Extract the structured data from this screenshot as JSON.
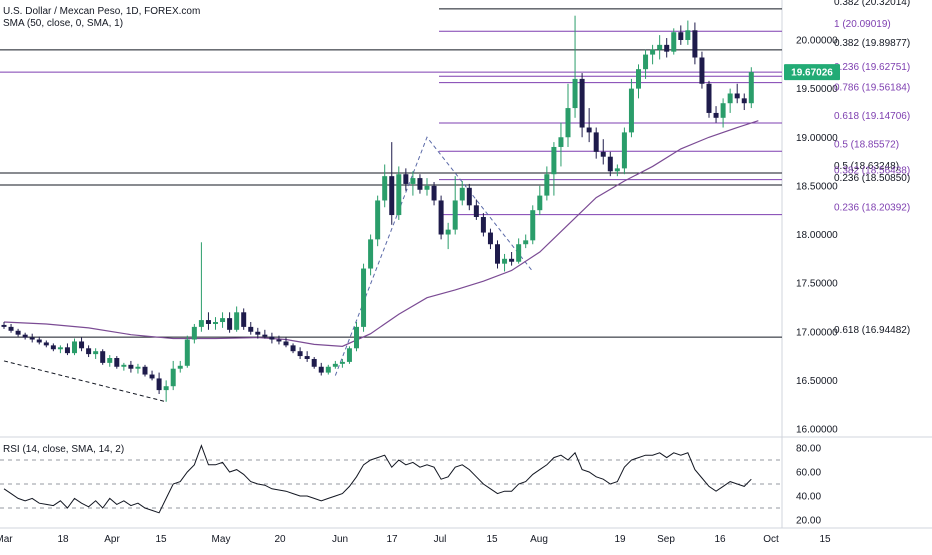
{
  "window": {
    "title": "U.S. Dollar / Mexcan Peso, 1D, FOREX.com",
    "sma_legend": "SMA (50, close, 0, SMA, 1)",
    "rsi_legend": "RSI (14, close, SMA, 14, 2)"
  },
  "colors": {
    "up": "#2a9d6a",
    "down": "#1e1b4b",
    "fib": "#7e3fb0",
    "sma": "#7b4b94",
    "level": "#131722",
    "price_tag": "#22ab75",
    "grid": "#eeeeee"
  },
  "chart_data": [
    {
      "type": "candlestick",
      "title": "U.S. Dollar / Mexcan Peso, 1D, FOREX.com",
      "ylim": [
        16.0,
        20.35
      ],
      "y_ticks": [
        "20.00000",
        "19.50000",
        "19.00000",
        "18.50000",
        "18.00000",
        "17.50000",
        "17.00000",
        "16.50000",
        "16.00000"
      ],
      "x_ticks": [
        "Mar",
        "18",
        "Apr",
        "15",
        "May",
        "20",
        "Jun",
        "17",
        "Jul",
        "15",
        "Aug",
        "19",
        "Sep",
        "16",
        "Oct",
        "15"
      ],
      "last_price": "19.67026",
      "candles": [
        [
          17.07,
          17.1,
          17.03,
          17.05
        ],
        [
          17.05,
          17.08,
          16.99,
          17.01
        ],
        [
          17.01,
          17.03,
          16.95,
          16.97
        ],
        [
          16.97,
          16.99,
          16.92,
          16.94
        ],
        [
          16.94,
          16.98,
          16.89,
          16.92
        ],
        [
          16.92,
          16.95,
          16.87,
          16.89
        ],
        [
          16.89,
          16.91,
          16.84,
          16.86
        ],
        [
          16.86,
          16.88,
          16.8,
          16.82
        ],
        [
          16.82,
          16.86,
          16.78,
          16.84
        ],
        [
          16.84,
          16.88,
          16.76,
          16.78
        ],
        [
          16.78,
          16.93,
          16.76,
          16.9
        ],
        [
          16.9,
          16.94,
          16.8,
          16.83
        ],
        [
          16.83,
          16.86,
          16.74,
          16.77
        ],
        [
          16.77,
          16.83,
          16.72,
          16.8
        ],
        [
          16.8,
          16.82,
          16.66,
          16.68
        ],
        [
          16.68,
          16.76,
          16.64,
          16.73
        ],
        [
          16.73,
          16.75,
          16.62,
          16.64
        ],
        [
          16.64,
          16.68,
          16.6,
          16.66
        ],
        [
          16.66,
          16.7,
          16.58,
          16.62
        ],
        [
          16.62,
          16.67,
          16.57,
          16.64
        ],
        [
          16.64,
          16.66,
          16.54,
          16.56
        ],
        [
          16.56,
          16.6,
          16.5,
          16.52
        ],
        [
          16.52,
          16.58,
          16.36,
          16.4
        ],
        [
          16.4,
          16.5,
          16.28,
          16.44
        ],
        [
          16.44,
          16.7,
          16.4,
          16.62
        ],
        [
          16.62,
          16.7,
          16.58,
          16.65
        ],
        [
          16.65,
          16.96,
          16.63,
          16.92
        ],
        [
          16.92,
          17.08,
          16.88,
          17.05
        ],
        [
          17.05,
          17.92,
          17.0,
          17.12
        ],
        [
          17.12,
          17.2,
          17.02,
          17.08
        ],
        [
          17.08,
          17.15,
          17.02,
          17.1
        ],
        [
          17.1,
          17.2,
          17.04,
          17.14
        ],
        [
          17.14,
          17.2,
          16.99,
          17.02
        ],
        [
          17.02,
          17.26,
          17.0,
          17.2
        ],
        [
          17.2,
          17.24,
          17.02,
          17.05
        ],
        [
          17.05,
          17.1,
          16.97,
          17.0
        ],
        [
          17.0,
          17.04,
          16.93,
          16.97
        ],
        [
          16.97,
          17.02,
          16.93,
          16.95
        ],
        [
          16.95,
          16.99,
          16.88,
          16.92
        ],
        [
          16.92,
          16.96,
          16.87,
          16.9
        ],
        [
          16.9,
          16.94,
          16.84,
          16.86
        ],
        [
          16.86,
          16.88,
          16.78,
          16.8
        ],
        [
          16.8,
          16.84,
          16.72,
          16.75
        ],
        [
          16.75,
          16.8,
          16.69,
          16.72
        ],
        [
          16.72,
          16.74,
          16.62,
          16.64
        ],
        [
          16.64,
          16.68,
          16.55,
          16.58
        ],
        [
          16.58,
          16.66,
          16.56,
          16.64
        ],
        [
          16.64,
          16.7,
          16.62,
          16.67
        ],
        [
          16.67,
          16.72,
          16.63,
          16.69
        ],
        [
          16.69,
          16.85,
          16.67,
          16.83
        ],
        [
          16.83,
          17.1,
          16.8,
          17.05
        ],
        [
          17.05,
          17.7,
          17.0,
          17.65
        ],
        [
          17.65,
          18.0,
          17.58,
          17.95
        ],
        [
          17.95,
          18.4,
          17.88,
          18.35
        ],
        [
          18.35,
          18.72,
          18.28,
          18.6
        ],
        [
          18.6,
          18.95,
          18.1,
          18.2
        ],
        [
          18.2,
          18.7,
          18.15,
          18.62
        ],
        [
          18.62,
          18.68,
          18.45,
          18.52
        ],
        [
          18.52,
          18.65,
          18.4,
          18.58
        ],
        [
          18.58,
          18.62,
          18.42,
          18.46
        ],
        [
          18.46,
          18.58,
          18.4,
          18.5
        ],
        [
          18.5,
          18.54,
          18.3,
          18.35
        ],
        [
          18.35,
          18.4,
          17.95,
          18.0
        ],
        [
          18.0,
          18.12,
          17.85,
          18.05
        ],
        [
          18.05,
          18.6,
          18.0,
          18.35
        ],
        [
          18.35,
          18.55,
          18.3,
          18.48
        ],
        [
          18.48,
          18.52,
          18.25,
          18.3
        ],
        [
          18.3,
          18.36,
          18.15,
          18.18
        ],
        [
          18.18,
          18.22,
          17.98,
          18.02
        ],
        [
          18.02,
          18.06,
          17.85,
          17.9
        ],
        [
          17.9,
          17.94,
          17.65,
          17.7
        ],
        [
          17.7,
          17.8,
          17.62,
          17.75
        ],
        [
          17.75,
          17.82,
          17.68,
          17.72
        ],
        [
          17.72,
          17.96,
          17.7,
          17.9
        ],
        [
          17.9,
          18.0,
          17.86,
          17.94
        ],
        [
          17.94,
          18.3,
          17.9,
          18.25
        ],
        [
          18.25,
          18.5,
          18.2,
          18.4
        ],
        [
          18.4,
          18.7,
          18.35,
          18.62
        ],
        [
          18.62,
          18.95,
          18.4,
          18.9
        ],
        [
          18.9,
          19.15,
          18.7,
          19.0
        ],
        [
          19.0,
          19.55,
          18.9,
          19.3
        ],
        [
          19.3,
          20.25,
          19.2,
          19.6
        ],
        [
          19.6,
          19.66,
          19.0,
          19.1
        ],
        [
          19.1,
          19.3,
          18.95,
          19.05
        ],
        [
          19.05,
          19.1,
          18.78,
          18.85
        ],
        [
          18.85,
          18.98,
          18.72,
          18.8
        ],
        [
          18.8,
          18.85,
          18.6,
          18.65
        ],
        [
          18.65,
          18.72,
          18.6,
          18.68
        ],
        [
          18.68,
          19.1,
          18.62,
          19.05
        ],
        [
          19.05,
          19.6,
          19.0,
          19.5
        ],
        [
          19.5,
          19.75,
          19.4,
          19.7
        ],
        [
          19.7,
          19.9,
          19.6,
          19.85
        ],
        [
          19.85,
          19.95,
          19.75,
          19.9
        ],
        [
          19.9,
          20.05,
          19.8,
          19.95
        ],
        [
          19.95,
          20.02,
          19.82,
          19.88
        ],
        [
          19.88,
          20.12,
          19.85,
          20.08
        ],
        [
          20.08,
          20.15,
          19.95,
          20.0
        ],
        [
          20.0,
          20.2,
          19.95,
          20.1
        ],
        [
          20.1,
          20.18,
          19.75,
          19.82
        ],
        [
          19.82,
          19.88,
          19.5,
          19.55
        ],
        [
          19.55,
          19.58,
          19.2,
          19.25
        ],
        [
          19.25,
          19.32,
          19.15,
          19.2
        ],
        [
          19.2,
          19.4,
          19.1,
          19.35
        ],
        [
          19.35,
          19.5,
          19.25,
          19.45
        ],
        [
          19.45,
          19.55,
          19.35,
          19.4
        ],
        [
          19.4,
          19.45,
          19.28,
          19.35
        ],
        [
          19.35,
          19.72,
          19.3,
          19.67
        ]
      ],
      "sma": [
        [
          0,
          17.1
        ],
        [
          6,
          17.08
        ],
        [
          12,
          17.04
        ],
        [
          18,
          16.97
        ],
        [
          24,
          16.93
        ],
        [
          30,
          16.93
        ],
        [
          36,
          16.94
        ],
        [
          40,
          16.92
        ],
        [
          44,
          16.87
        ],
        [
          48,
          16.85
        ],
        [
          52,
          16.98
        ],
        [
          56,
          17.18
        ],
        [
          60,
          17.35
        ],
        [
          64,
          17.43
        ],
        [
          68,
          17.52
        ],
        [
          72,
          17.63
        ],
        [
          76,
          17.82
        ],
        [
          80,
          18.1
        ],
        [
          84,
          18.38
        ],
        [
          88,
          18.55
        ],
        [
          92,
          18.7
        ],
        [
          96,
          18.88
        ],
        [
          100,
          19.0
        ],
        [
          104,
          19.1
        ],
        [
          107,
          19.17
        ]
      ],
      "horizontal_levels": [
        {
          "value": 20.32014,
          "label": "0.382 (20.32014)",
          "kind": "level",
          "from": 60
        },
        {
          "value": 19.89877,
          "label": "0.382 (19.89877)",
          "kind": "level",
          "from": 0
        },
        {
          "value": 19.67026,
          "label": "",
          "kind": "fib",
          "from": 0
        },
        {
          "value": 16.94482,
          "label": "0.618 (16.94482)",
          "kind": "level",
          "from": 0
        },
        {
          "value": 18.63248,
          "label": "0.5 (18.63248)",
          "kind": "level",
          "from": 0
        },
        {
          "value": 18.5085,
          "label": "0.236 (18.50850)",
          "kind": "level",
          "from": 0
        }
      ],
      "fib_levels": [
        {
          "value": 20.09019,
          "label": "1 (20.09019)"
        },
        {
          "value": 19.62751,
          "label": "0.236 (19.62751)"
        },
        {
          "value": 19.56184,
          "label": "0.786 (19.56184)"
        },
        {
          "value": 19.14706,
          "label": "0.618 (19.14706)"
        },
        {
          "value": 18.85572,
          "label": "0.5 (18.85572)"
        },
        {
          "value": 18.56438,
          "label": "0.382 (18.56438)"
        },
        {
          "value": 18.20392,
          "label": "0.236 (18.20392)"
        }
      ],
      "fib_from": 60,
      "trendline": [
        [
          0,
          16.7
        ],
        [
          23,
          16.28
        ]
      ],
      "zigzag": [
        [
          47,
          16.55
        ],
        [
          60,
          19.0
        ],
        [
          75,
          17.62
        ]
      ]
    },
    {
      "type": "line",
      "title": "RSI (14, close, SMA, 14, 2)",
      "ylim": [
        15,
        85
      ],
      "y_ticks": [
        "80.00",
        "60.00",
        "40.00",
        "20.00"
      ],
      "levels": [
        70,
        50,
        30
      ],
      "values": [
        46,
        42,
        38,
        36,
        38,
        34,
        33,
        32,
        36,
        30,
        38,
        34,
        31,
        36,
        30,
        38,
        33,
        36,
        32,
        34,
        30,
        28,
        26,
        38,
        50,
        52,
        60,
        66,
        82,
        66,
        66,
        68,
        60,
        62,
        58,
        52,
        50,
        49,
        46,
        45,
        44,
        42,
        40,
        40,
        38,
        36,
        38,
        40,
        42,
        48,
        56,
        66,
        70,
        72,
        74,
        64,
        70,
        66,
        68,
        64,
        66,
        64,
        54,
        56,
        64,
        66,
        62,
        56,
        50,
        46,
        42,
        44,
        44,
        50,
        52,
        58,
        62,
        66,
        72,
        74,
        70,
        76,
        62,
        60,
        56,
        54,
        50,
        52,
        64,
        70,
        72,
        74,
        74,
        76,
        72,
        76,
        74,
        76,
        62,
        55,
        48,
        44,
        48,
        52,
        50,
        48,
        54
      ]
    }
  ]
}
